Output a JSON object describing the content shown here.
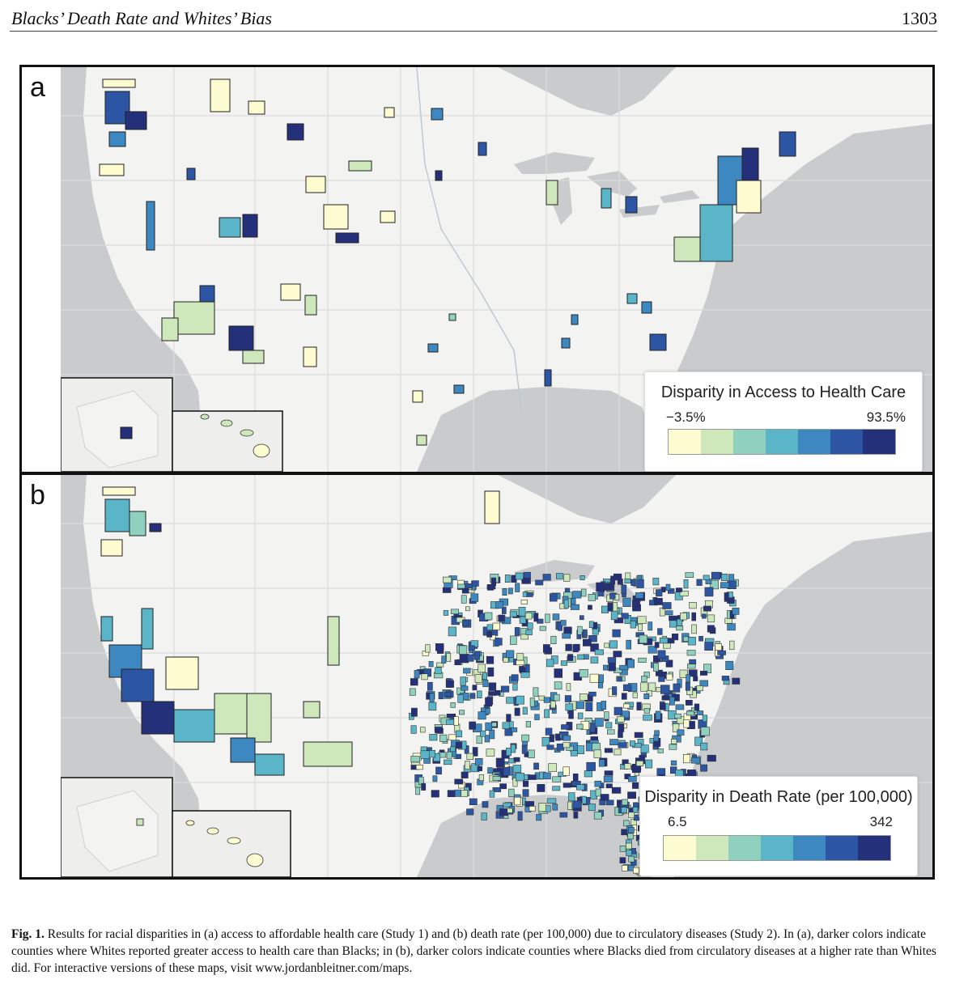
{
  "header": {
    "running_title": "Blacks’ Death Rate and Whites’ Bias",
    "page_number": "1303"
  },
  "figure": {
    "panel_a": {
      "letter": "a",
      "legend": {
        "title": "Disparity in Access to Health Care",
        "min_label": "−3.5%",
        "max_label": "93.5%",
        "colors": [
          "#fdfbd0",
          "#cfe8bb",
          "#8fd1be",
          "#5bb5c9",
          "#3d88c0",
          "#2c55a3",
          "#24307a"
        ]
      }
    },
    "panel_b": {
      "letter": "b",
      "legend": {
        "title": "Disparity in Death Rate (per 100,000)",
        "min_label": "6.5",
        "max_label": "342",
        "colors": [
          "#fdfbd0",
          "#cfe8bb",
          "#8fd1be",
          "#5bb5c9",
          "#3d88c0",
          "#2c55a3",
          "#24307a"
        ]
      }
    },
    "map_colors": {
      "land": "#f3f3f2",
      "water": "#c9cbcc",
      "border": "#d6d6d6",
      "river": "#b8c3cc"
    }
  },
  "caption": {
    "label": "Fig. 1.",
    "text": "Results for racial disparities in (a) access to affordable health care (Study 1) and (b) death rate (per 100,000) due to circulatory diseases (Study 2). In (a), darker colors indicate counties where Whites reported greater access to health care than Blacks; in (b), darker colors indicate counties where Blacks died from circulatory diseases at a higher rate than Whites did. For interactive versions of these maps, visit www.jordanbleitner.com/maps."
  }
}
